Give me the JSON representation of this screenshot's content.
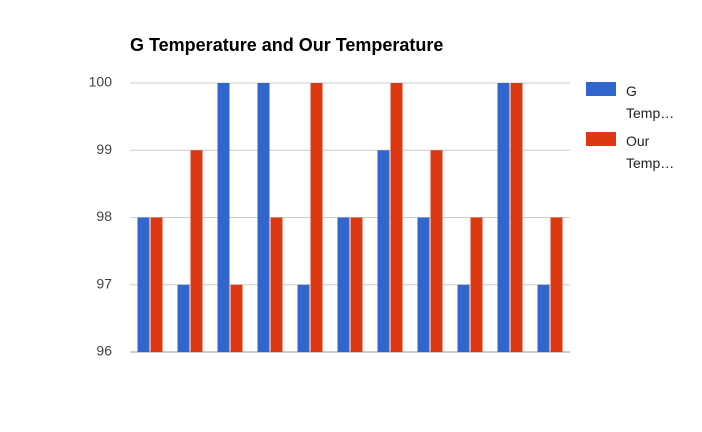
{
  "chart_data": {
    "type": "bar",
    "title": "G Temperature and Our Temperature",
    "categories": [
      null,
      null,
      null,
      null,
      null,
      null,
      null,
      null,
      null,
      null,
      null
    ],
    "series": [
      {
        "name": "G Temp…",
        "color": "#3366cc",
        "values": [
          98,
          97,
          100,
          100,
          97,
          98,
          99,
          98,
          97,
          100,
          97
        ]
      },
      {
        "name": "Our Temp…",
        "color": "#dc3912",
        "values": [
          98,
          99,
          97,
          98,
          100,
          98,
          100,
          99,
          98,
          100,
          98
        ]
      }
    ],
    "ylim": [
      96,
      100
    ],
    "yticks": [
      96,
      97,
      98,
      99,
      100
    ],
    "grid": true,
    "legend": "right"
  }
}
